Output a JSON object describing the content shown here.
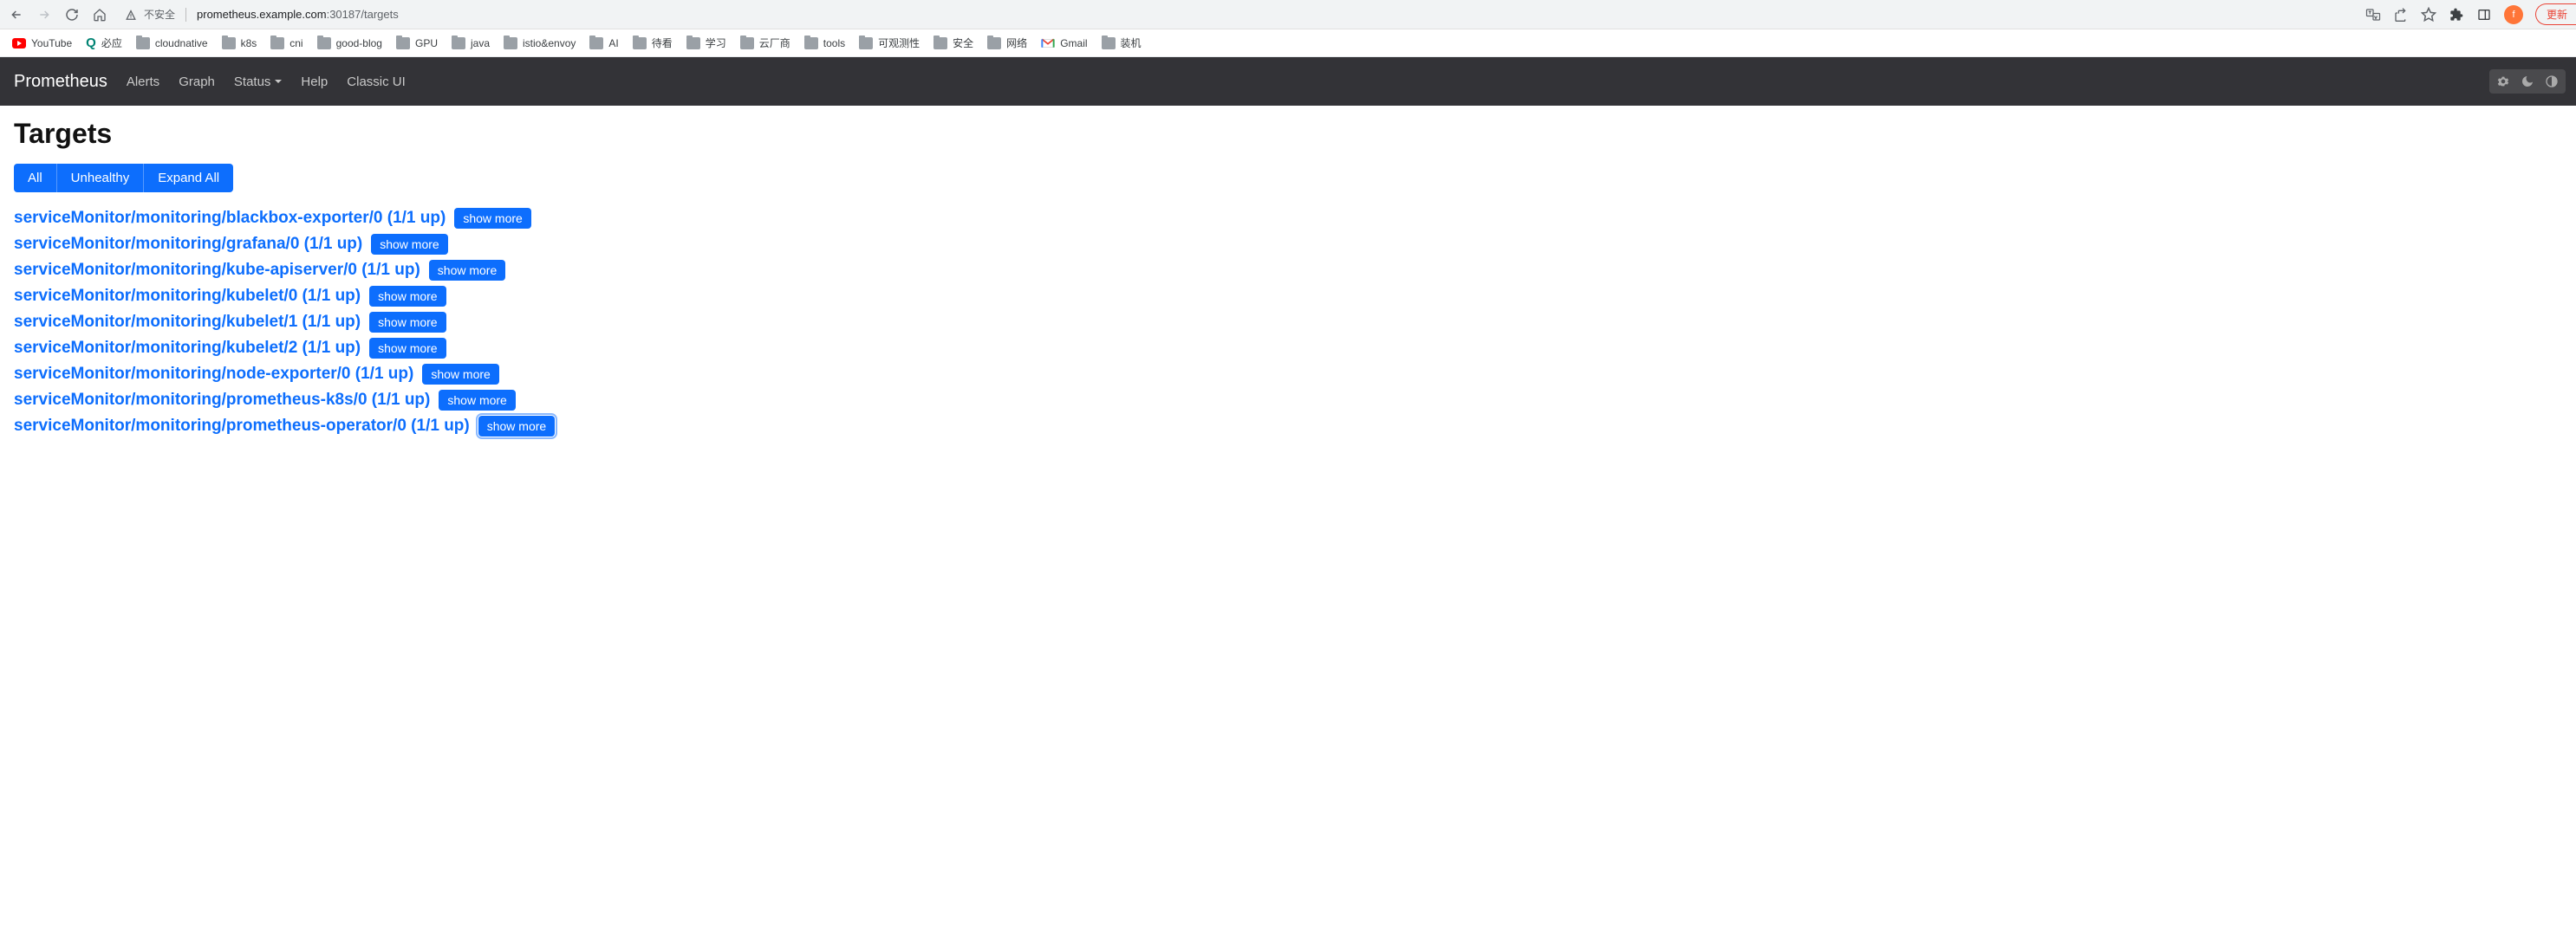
{
  "browser": {
    "security_text": "不安全",
    "url_host": "prometheus.example.com",
    "url_port": ":30187",
    "url_path": "/targets",
    "avatar_initial": "f",
    "update_label": "更新"
  },
  "bookmarks": [
    {
      "type": "youtube",
      "label": "YouTube"
    },
    {
      "type": "bing",
      "label": "必应"
    },
    {
      "type": "folder",
      "label": "cloudnative"
    },
    {
      "type": "folder",
      "label": "k8s"
    },
    {
      "type": "folder",
      "label": "cni"
    },
    {
      "type": "folder",
      "label": "good-blog"
    },
    {
      "type": "folder",
      "label": "GPU"
    },
    {
      "type": "folder",
      "label": "java"
    },
    {
      "type": "folder",
      "label": "istio&envoy"
    },
    {
      "type": "folder",
      "label": "AI"
    },
    {
      "type": "folder",
      "label": "待看"
    },
    {
      "type": "folder",
      "label": "学习"
    },
    {
      "type": "folder",
      "label": "云厂商"
    },
    {
      "type": "folder",
      "label": "tools"
    },
    {
      "type": "folder",
      "label": "可观测性"
    },
    {
      "type": "folder",
      "label": "安全"
    },
    {
      "type": "folder",
      "label": "网络"
    },
    {
      "type": "gmail",
      "label": "Gmail"
    },
    {
      "type": "folder",
      "label": "装机"
    }
  ],
  "nav": {
    "brand": "Prometheus",
    "items": [
      "Alerts",
      "Graph",
      "Status",
      "Help",
      "Classic UI"
    ],
    "dropdown_indices": [
      2
    ]
  },
  "page": {
    "title": "Targets",
    "filter_buttons": [
      {
        "label": "All",
        "active": true
      },
      {
        "label": "Unhealthy",
        "active": false
      },
      {
        "label": "Expand All",
        "active": false
      }
    ],
    "show_more_label": "show more",
    "targets": [
      {
        "name": "serviceMonitor/monitoring/blackbox-exporter/0 (1/1 up)",
        "focused": false
      },
      {
        "name": "serviceMonitor/monitoring/grafana/0 (1/1 up)",
        "focused": false
      },
      {
        "name": "serviceMonitor/monitoring/kube-apiserver/0 (1/1 up)",
        "focused": false
      },
      {
        "name": "serviceMonitor/monitoring/kubelet/0 (1/1 up)",
        "focused": false
      },
      {
        "name": "serviceMonitor/monitoring/kubelet/1 (1/1 up)",
        "focused": false
      },
      {
        "name": "serviceMonitor/monitoring/kubelet/2 (1/1 up)",
        "focused": false
      },
      {
        "name": "serviceMonitor/monitoring/node-exporter/0 (1/1 up)",
        "focused": false
      },
      {
        "name": "serviceMonitor/monitoring/prometheus-k8s/0 (1/1 up)",
        "focused": false
      },
      {
        "name": "serviceMonitor/monitoring/prometheus-operator/0 (1/1 up)",
        "focused": true
      }
    ]
  },
  "colors": {
    "nav_bg": "#333337",
    "primary": "#0d6efd",
    "link": "#0d6efd",
    "avatar": "#ff7538",
    "update": "#ea4335"
  }
}
